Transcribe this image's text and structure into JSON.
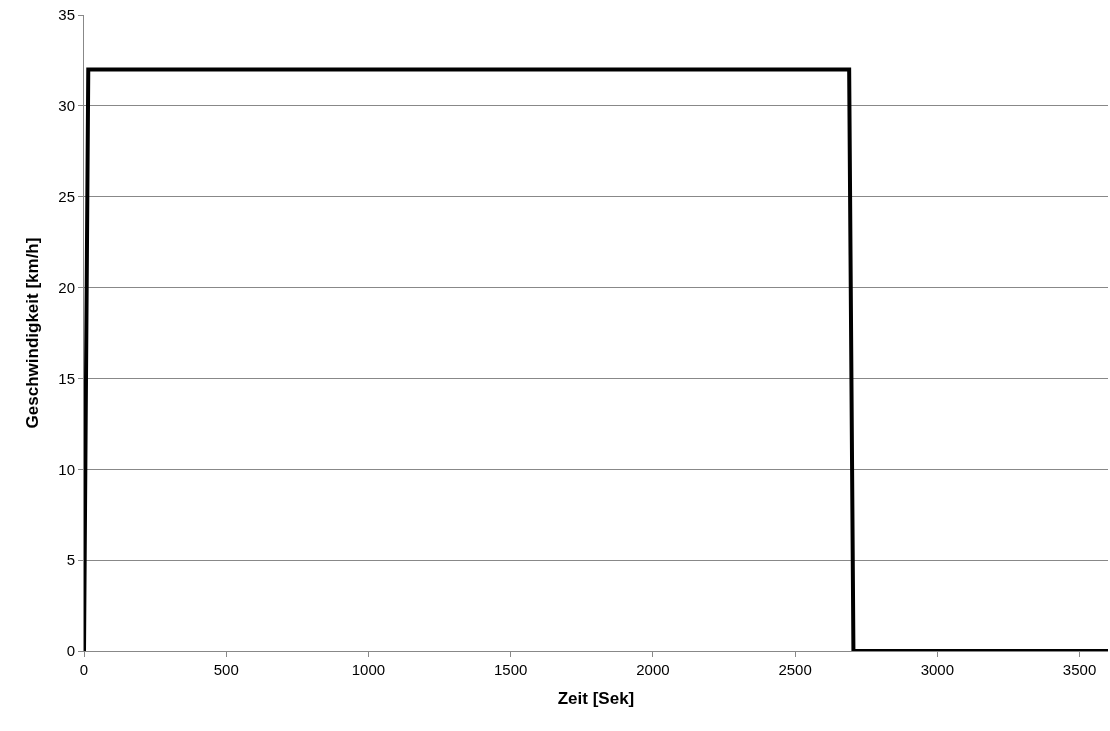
{
  "chart_data": {
    "type": "line",
    "xlabel": "Zeit [Sek]",
    "ylabel": "Geschwindigkeit [km/h]",
    "x": [
      0,
      15,
      2690,
      2705,
      3600
    ],
    "series": [
      {
        "color": "#000000",
        "values": [
          0,
          32,
          32,
          0,
          0
        ]
      }
    ],
    "xlim": [
      0,
      3600
    ],
    "xticks": [
      0,
      500,
      1000,
      1500,
      2000,
      2500,
      3000,
      3500
    ],
    "ylim": [
      0,
      35
    ],
    "yticks": [
      0,
      5,
      10,
      15,
      20,
      25,
      30,
      35
    ],
    "grid": "y",
    "marker": "none",
    "line_style": "solid"
  }
}
